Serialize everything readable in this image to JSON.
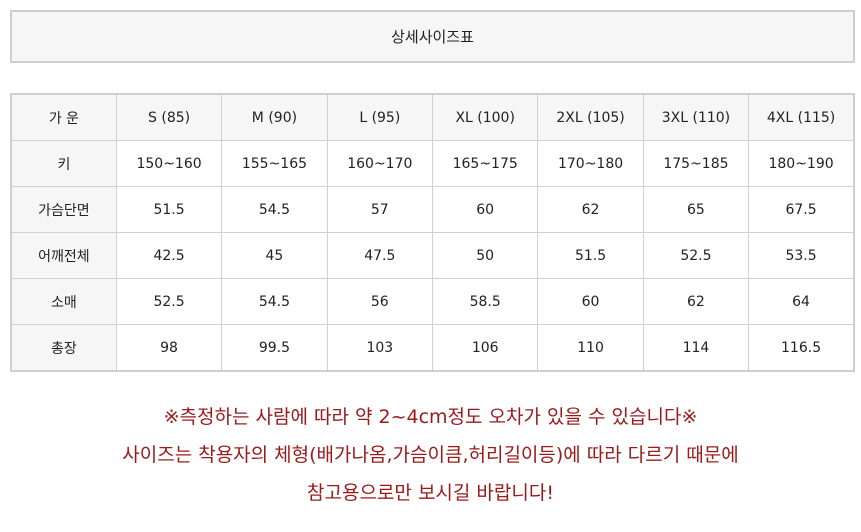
{
  "title": "상세사이즈표",
  "table": {
    "header": [
      "가 운",
      "S (85)",
      "M (90)",
      "L (95)",
      "XL (100)",
      "2XL (105)",
      "3XL (110)",
      "4XL (115)"
    ],
    "rows": [
      [
        "키",
        "150~160",
        "155~165",
        "160~170",
        "165~175",
        "170~180",
        "175~185",
        "180~190"
      ],
      [
        "가슴단면",
        "51.5",
        "54.5",
        "57",
        "60",
        "62",
        "65",
        "67.5"
      ],
      [
        "어깨전체",
        "42.5",
        "45",
        "47.5",
        "50",
        "51.5",
        "52.5",
        "53.5"
      ],
      [
        "소매",
        "52.5",
        "54.5",
        "56",
        "58.5",
        "60",
        "62",
        "64"
      ],
      [
        "총장",
        "98",
        "99.5",
        "103",
        "106",
        "110",
        "114",
        "116.5"
      ]
    ]
  },
  "notes": [
    "※측정하는 사람에 따라 약 2~4cm정도 오차가 있을 수 있습니다※",
    "사이즈는 착용자의 체형(배가나옴,가슴이큼,허리길이등)에 따라 다르기 때문에",
    "참고용으로만 보시길 바랍니다!"
  ],
  "colors": {
    "note_text": "#9a1a1a",
    "header_bg": "#f6f6f6",
    "border": "#cfcfcf"
  }
}
